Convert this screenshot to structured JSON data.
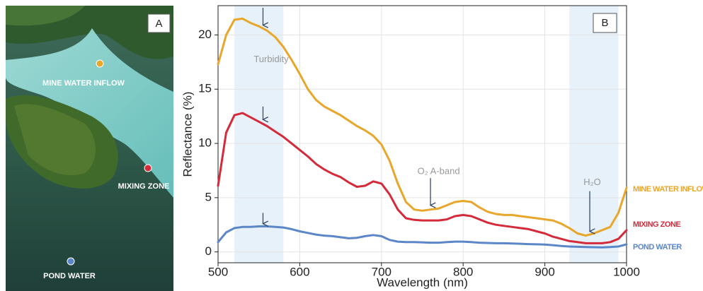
{
  "photo": {
    "panel_label": "A",
    "sites": [
      {
        "label": "MINE WATER INFLOW",
        "color": "#e8a62a"
      },
      {
        "label": "MIXING ZONE",
        "color": "#d42a3a"
      },
      {
        "label": "POND WATER",
        "color": "#5b86c8"
      }
    ]
  },
  "chart_data": {
    "type": "line",
    "panel_label": "B",
    "x_label": "Wavelength (nm)",
    "y_label": "Reflectance (%)",
    "x": [
      500,
      510,
      520,
      530,
      540,
      550,
      560,
      570,
      580,
      590,
      600,
      610,
      620,
      630,
      640,
      650,
      660,
      670,
      680,
      690,
      700,
      710,
      720,
      730,
      740,
      750,
      760,
      770,
      780,
      790,
      800,
      810,
      820,
      830,
      840,
      850,
      860,
      870,
      880,
      890,
      900,
      910,
      920,
      930,
      940,
      950,
      960,
      970,
      980,
      990,
      1000
    ],
    "series": [
      {
        "name": "MINE WATER INFLOW",
        "color": "#e8a62a",
        "values": [
          17.3,
          20.0,
          21.4,
          21.5,
          21.1,
          20.8,
          20.4,
          19.8,
          18.9,
          17.7,
          16.4,
          15.0,
          14.0,
          13.4,
          13.0,
          12.6,
          12.1,
          11.6,
          11.2,
          10.7,
          9.9,
          8.4,
          6.3,
          4.6,
          3.9,
          3.8,
          3.9,
          4.0,
          4.3,
          4.6,
          4.7,
          4.6,
          4.1,
          3.7,
          3.5,
          3.4,
          3.4,
          3.3,
          3.2,
          3.1,
          3.0,
          2.9,
          2.6,
          2.2,
          1.7,
          1.5,
          1.7,
          2.0,
          2.3,
          3.6,
          5.9
        ]
      },
      {
        "name": "MIXING ZONE",
        "color": "#d42a3a",
        "values": [
          6.1,
          11.0,
          12.6,
          12.8,
          12.4,
          12.0,
          11.6,
          11.1,
          10.6,
          10.0,
          9.4,
          8.8,
          8.1,
          7.6,
          7.2,
          6.9,
          6.4,
          6.0,
          6.1,
          6.5,
          6.3,
          5.3,
          3.9,
          3.1,
          2.95,
          2.9,
          2.9,
          2.9,
          3.0,
          3.3,
          3.4,
          3.3,
          3.0,
          2.7,
          2.5,
          2.4,
          2.3,
          2.2,
          2.1,
          1.9,
          1.7,
          1.4,
          1.2,
          1.0,
          0.9,
          0.8,
          0.8,
          0.8,
          0.9,
          1.2,
          2.0
        ]
      },
      {
        "name": "POND WATER",
        "color": "#5b86c8",
        "values": [
          0.9,
          1.8,
          2.2,
          2.3,
          2.3,
          2.35,
          2.35,
          2.3,
          2.25,
          2.1,
          1.9,
          1.75,
          1.6,
          1.5,
          1.45,
          1.35,
          1.25,
          1.3,
          1.45,
          1.55,
          1.45,
          1.1,
          0.95,
          0.9,
          0.9,
          0.88,
          0.85,
          0.85,
          0.9,
          0.95,
          0.95,
          0.9,
          0.85,
          0.82,
          0.8,
          0.8,
          0.78,
          0.75,
          0.72,
          0.7,
          0.68,
          0.62,
          0.55,
          0.5,
          0.47,
          0.45,
          0.43,
          0.42,
          0.45,
          0.5,
          0.7
        ]
      }
    ],
    "xlim": [
      500,
      1000
    ],
    "ylim": [
      -1,
      22.7
    ],
    "xticks": [
      500,
      600,
      700,
      800,
      900,
      1000
    ],
    "yticks": [
      0,
      5,
      10,
      15,
      20
    ],
    "grid": true,
    "shaded_bands": [
      [
        520,
        580
      ],
      [
        930,
        990
      ]
    ],
    "annotations": [
      {
        "text": "Turbidity",
        "x": 565,
        "y": 17.7
      },
      {
        "text": "O₂  A‑band",
        "x": 770,
        "y": 7.4
      },
      {
        "text": "H₂O",
        "x": 958,
        "y": 6.4
      }
    ],
    "arrows": [
      {
        "x": 555,
        "y": [
          22.5,
          20.9
        ]
      },
      {
        "x": 555,
        "y": [
          13.4,
          12.2
        ]
      },
      {
        "x": 555,
        "y": [
          3.6,
          2.6
        ]
      },
      {
        "x": 760,
        "y": [
          6.8,
          4.3
        ]
      },
      {
        "x": 955,
        "y": [
          5.6,
          1.9
        ]
      }
    ]
  }
}
